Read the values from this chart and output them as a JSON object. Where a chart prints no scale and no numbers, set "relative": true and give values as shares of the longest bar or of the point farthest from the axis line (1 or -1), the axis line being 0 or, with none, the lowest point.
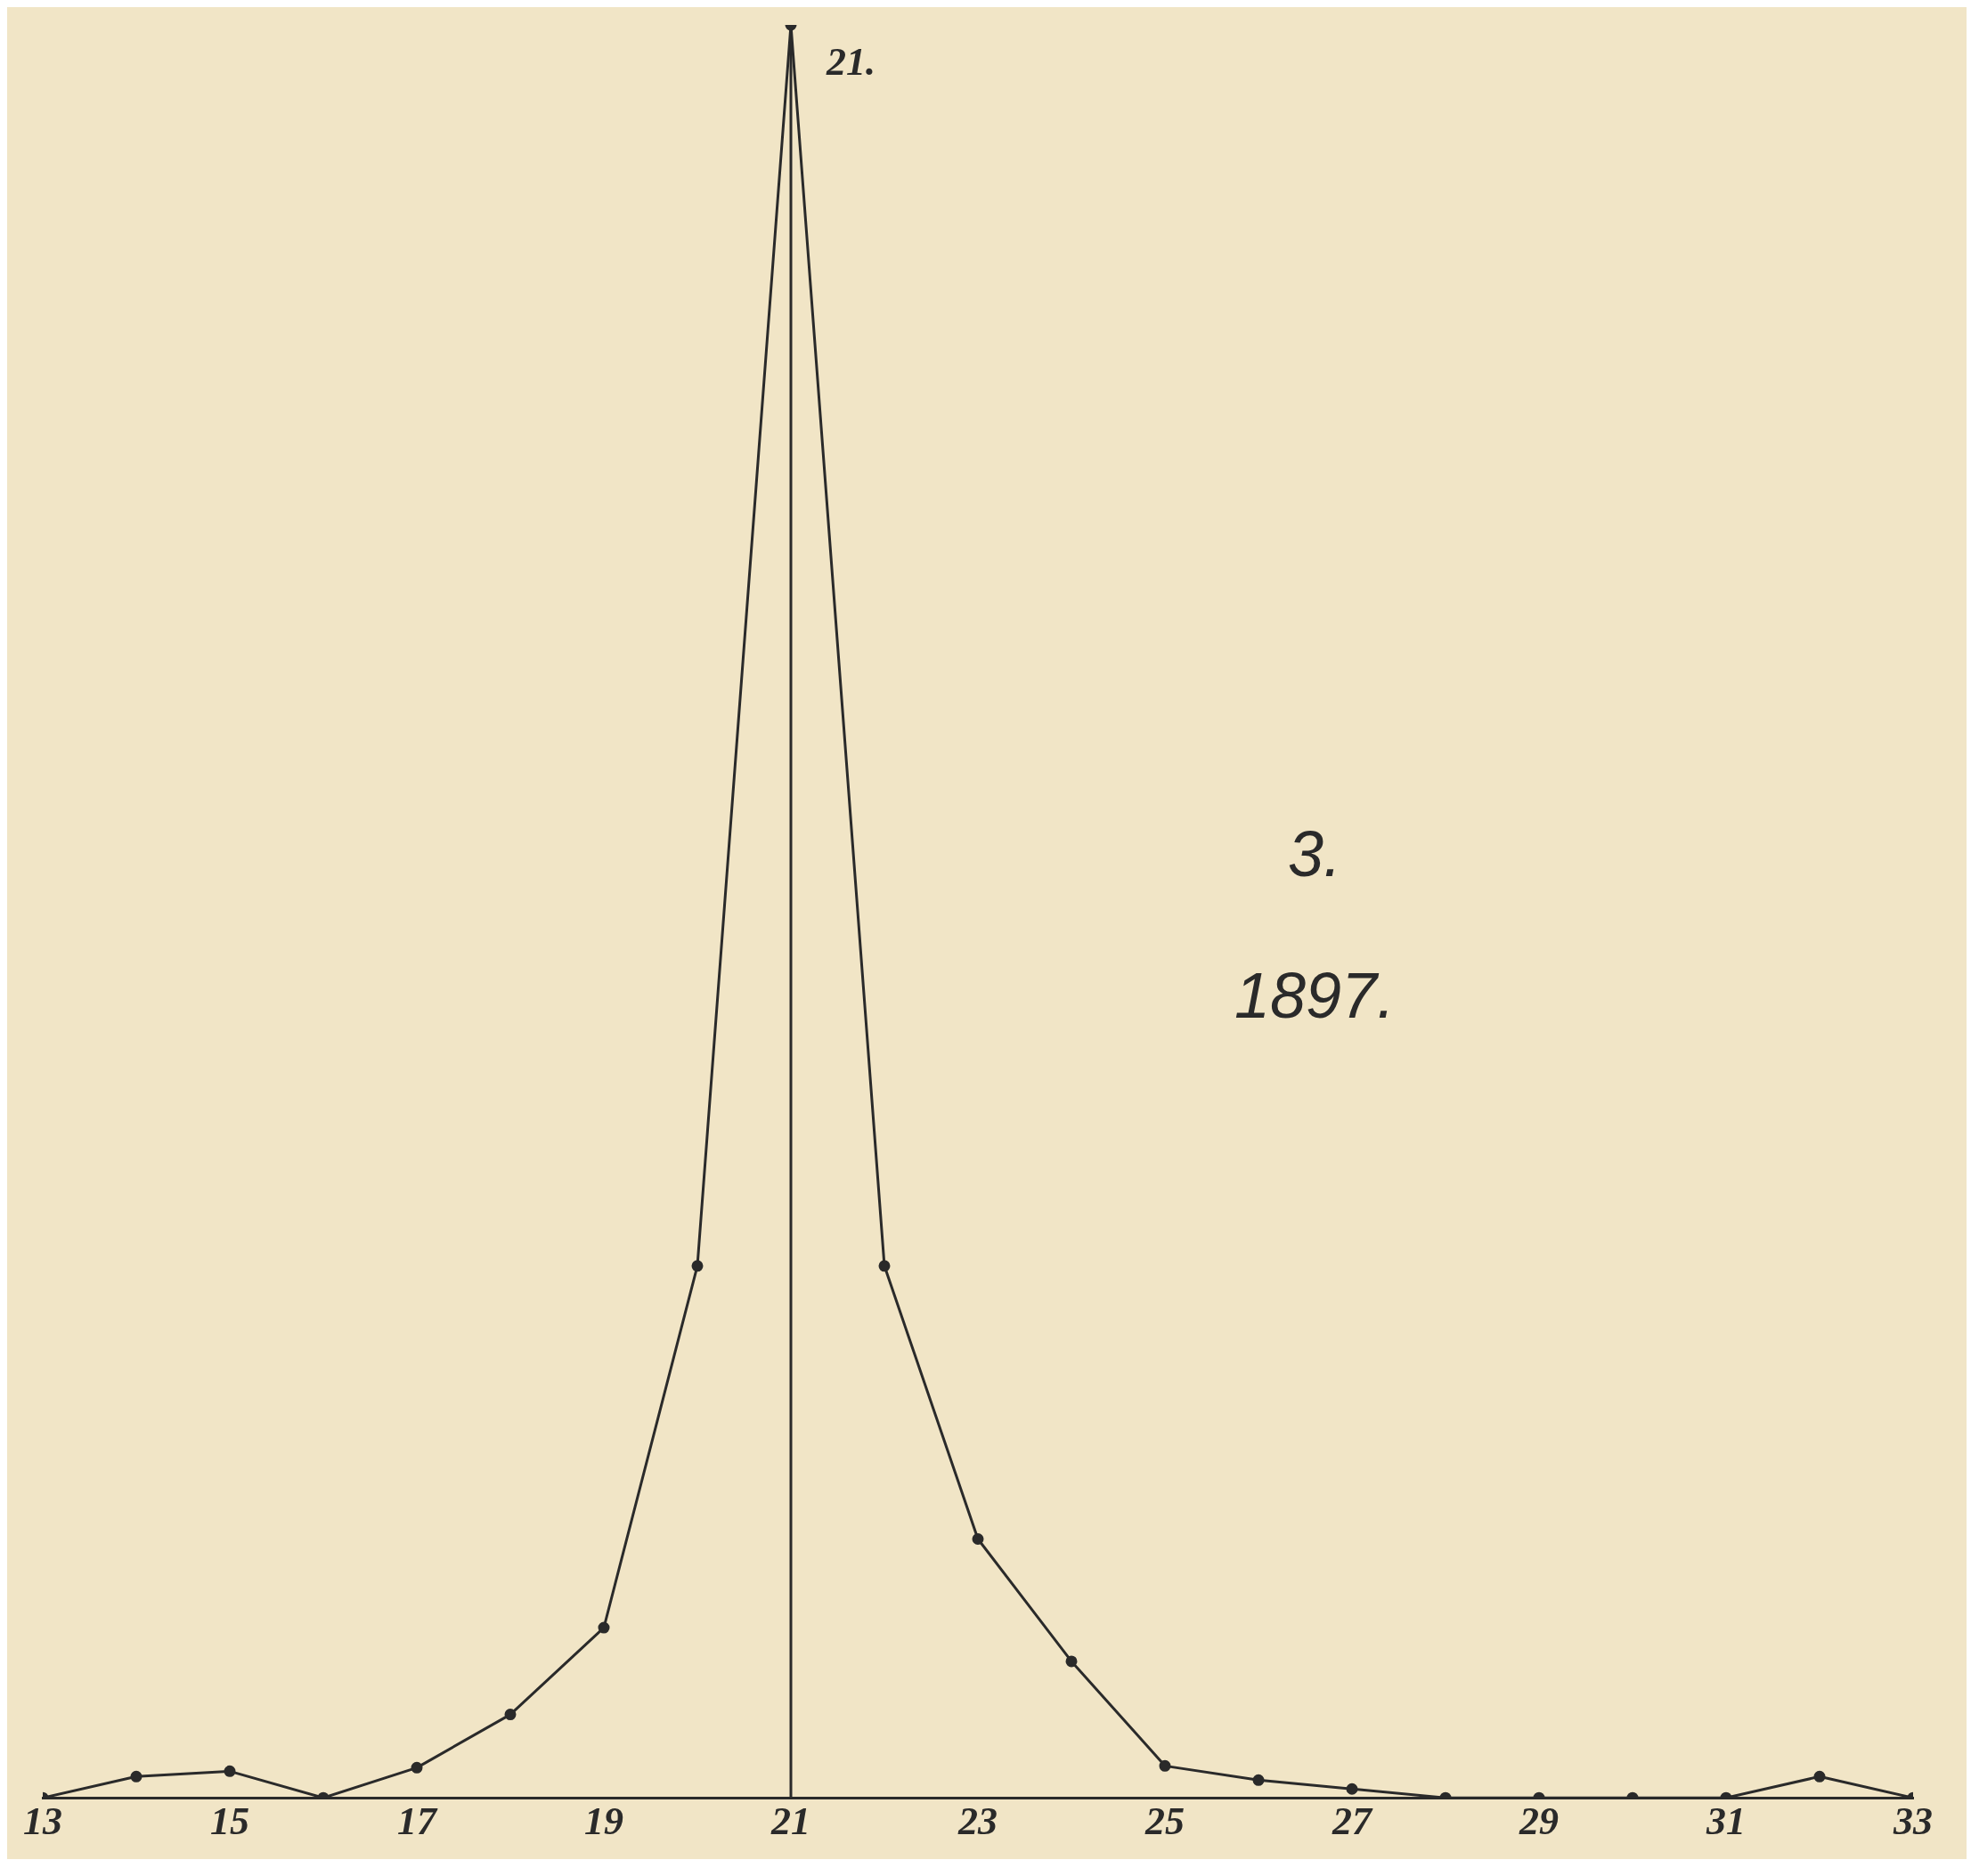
{
  "chart_data": {
    "type": "line",
    "title": "3.",
    "subtitle": "1897.",
    "relative": true,
    "x": [
      13,
      14,
      15,
      16,
      17,
      18,
      19,
      20,
      21,
      22,
      23,
      24,
      25,
      26,
      27,
      28,
      29,
      30,
      31,
      32,
      33
    ],
    "series": [
      {
        "color": "#2a2a2a",
        "values": [
          0,
          0.012,
          0.015,
          0,
          0.017,
          0.047,
          0.096,
          0.3,
          1,
          0.3,
          0.146,
          0.077,
          0.018,
          0.01,
          0.005,
          0,
          0,
          0,
          0,
          0.012,
          0
        ]
      }
    ],
    "xlim": [
      13,
      33
    ],
    "xticks": [
      13,
      15,
      17,
      19,
      21,
      23,
      25,
      27,
      29,
      31,
      33
    ],
    "ref_lines": [
      {
        "axis": "x",
        "value": 21,
        "label": "21.",
        "color": "#2a2a2a"
      }
    ],
    "grid": false,
    "legend": false,
    "marker": "circle",
    "line_style": "solid"
  }
}
